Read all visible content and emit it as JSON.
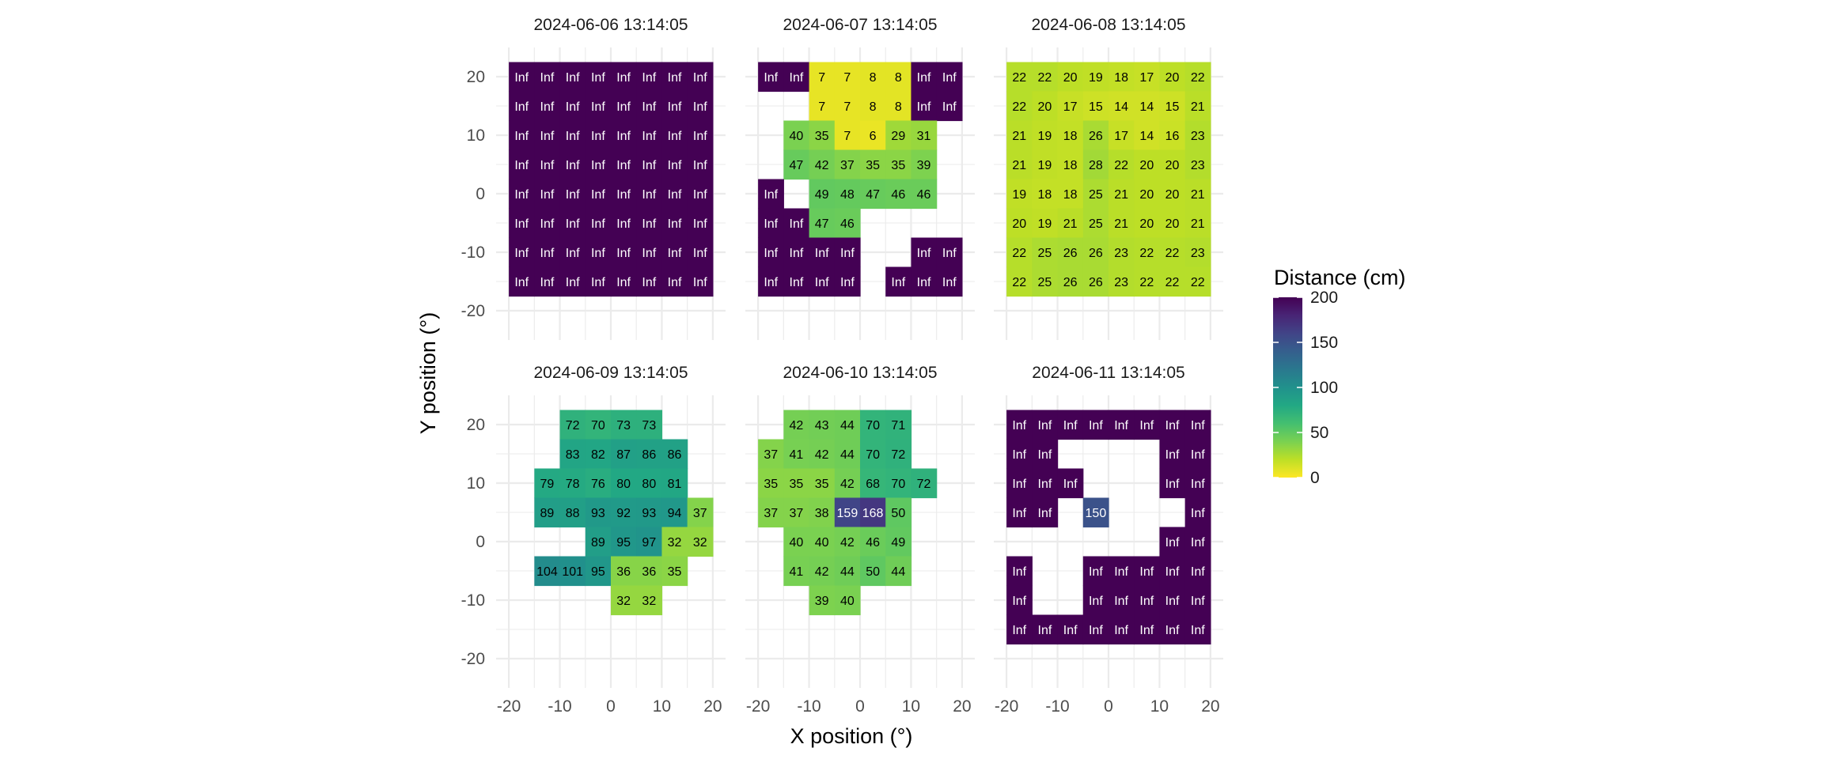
{
  "chart_data": {
    "type": "heatmap",
    "xlabel": "X position (°)",
    "ylabel": "Y position (°)",
    "x_ticks": [
      -20,
      -10,
      0,
      10,
      20
    ],
    "y_ticks": [
      20,
      10,
      0,
      -10,
      -20
    ],
    "xlim": [
      -22.5,
      22.5
    ],
    "ylim": [
      -25,
      25
    ],
    "x_centers": [
      -17.5,
      -12.5,
      -7.5,
      -2.5,
      2.5,
      7.5,
      12.5,
      17.5
    ],
    "y_centers": [
      20,
      15,
      10,
      5,
      0,
      -5,
      -10,
      -15
    ],
    "inf_display_value": 200,
    "legend": {
      "title": "Distance (cm)",
      "ticks": [
        200,
        150,
        100,
        50,
        0
      ],
      "range": [
        0,
        200
      ],
      "placement": "right",
      "colormap": "viridis (reversed: 0 = yellow, 200 = dark purple)"
    },
    "colors": {
      "grid": "#ebebeb",
      "text_dark": "#000000",
      "text_light": "#ffffff",
      "tick_label": "#4d4d4d"
    },
    "panels": [
      {
        "title": "2024-06-06 13:14:05",
        "rows": [
          [
            "Inf",
            "Inf",
            "Inf",
            "Inf",
            "Inf",
            "Inf",
            "Inf",
            "Inf"
          ],
          [
            "Inf",
            "Inf",
            "Inf",
            "Inf",
            "Inf",
            "Inf",
            "Inf",
            "Inf"
          ],
          [
            "Inf",
            "Inf",
            "Inf",
            "Inf",
            "Inf",
            "Inf",
            "Inf",
            "Inf"
          ],
          [
            "Inf",
            "Inf",
            "Inf",
            "Inf",
            "Inf",
            "Inf",
            "Inf",
            "Inf"
          ],
          [
            "Inf",
            "Inf",
            "Inf",
            "Inf",
            "Inf",
            "Inf",
            "Inf",
            "Inf"
          ],
          [
            "Inf",
            "Inf",
            "Inf",
            "Inf",
            "Inf",
            "Inf",
            "Inf",
            "Inf"
          ],
          [
            "Inf",
            "Inf",
            "Inf",
            "Inf",
            "Inf",
            "Inf",
            "Inf",
            "Inf"
          ],
          [
            "Inf",
            "Inf",
            "Inf",
            "Inf",
            "Inf",
            "Inf",
            "Inf",
            "Inf"
          ]
        ]
      },
      {
        "title": "2024-06-07 13:14:05",
        "rows": [
          [
            "Inf",
            "Inf",
            "7",
            "7",
            "8",
            "8",
            "Inf",
            "Inf"
          ],
          [
            null,
            null,
            "7",
            "7",
            "8",
            "8",
            "Inf",
            "Inf"
          ],
          [
            null,
            "40",
            "35",
            "7",
            "6",
            "29",
            "31",
            null
          ],
          [
            null,
            "47",
            "42",
            "37",
            "35",
            "35",
            "39",
            null
          ],
          [
            "Inf",
            null,
            "49",
            "48",
            "47",
            "46",
            "46",
            null
          ],
          [
            "Inf",
            "Inf",
            "47",
            "46",
            null,
            null,
            null,
            null
          ],
          [
            "Inf",
            "Inf",
            "Inf",
            "Inf",
            null,
            null,
            "Inf",
            "Inf"
          ],
          [
            "Inf",
            "Inf",
            "Inf",
            "Inf",
            null,
            "Inf",
            "Inf",
            "Inf"
          ]
        ]
      },
      {
        "title": "2024-06-08 13:14:05",
        "rows": [
          [
            "22",
            "22",
            "20",
            "19",
            "18",
            "17",
            "20",
            "22"
          ],
          [
            "22",
            "20",
            "17",
            "15",
            "14",
            "14",
            "15",
            "21"
          ],
          [
            "21",
            "19",
            "18",
            "26",
            "17",
            "14",
            "16",
            "23"
          ],
          [
            "21",
            "19",
            "18",
            "28",
            "22",
            "20",
            "20",
            "23"
          ],
          [
            "19",
            "18",
            "18",
            "25",
            "21",
            "20",
            "20",
            "21"
          ],
          [
            "20",
            "19",
            "21",
            "25",
            "21",
            "20",
            "20",
            "21"
          ],
          [
            "22",
            "25",
            "26",
            "26",
            "23",
            "22",
            "22",
            "23"
          ],
          [
            "22",
            "25",
            "26",
            "26",
            "23",
            "22",
            "22",
            "22"
          ]
        ]
      },
      {
        "title": "2024-06-09 13:14:05",
        "rows": [
          [
            null,
            null,
            "72",
            "70",
            "73",
            "73",
            null,
            null
          ],
          [
            null,
            null,
            "83",
            "82",
            "87",
            "86",
            "86",
            null
          ],
          [
            null,
            "79",
            "78",
            "76",
            "80",
            "80",
            "81",
            null
          ],
          [
            null,
            "89",
            "88",
            "93",
            "92",
            "93",
            "94",
            "37"
          ],
          [
            null,
            null,
            null,
            "89",
            "95",
            "97",
            "32",
            "32"
          ],
          [
            null,
            "104",
            "101",
            "95",
            "36",
            "36",
            "35",
            null
          ],
          [
            null,
            null,
            null,
            null,
            "32",
            "32",
            null,
            null
          ],
          [
            null,
            null,
            null,
            null,
            null,
            null,
            null,
            null
          ]
        ]
      },
      {
        "title": "2024-06-10 13:14:05",
        "rows": [
          [
            null,
            "42",
            "43",
            "44",
            "70",
            "71",
            null,
            null
          ],
          [
            "37",
            "41",
            "42",
            "44",
            "70",
            "72",
            null,
            null
          ],
          [
            "35",
            "35",
            "35",
            "42",
            "68",
            "70",
            "72",
            null
          ],
          [
            "37",
            "37",
            "38",
            "159",
            "168",
            "50",
            null,
            null
          ],
          [
            null,
            "40",
            "40",
            "42",
            "46",
            "49",
            null,
            null
          ],
          [
            null,
            "41",
            "42",
            "44",
            "50",
            "44",
            null,
            null
          ],
          [
            null,
            null,
            "39",
            "40",
            null,
            null,
            null,
            null
          ],
          [
            null,
            null,
            null,
            null,
            null,
            null,
            null,
            null
          ]
        ]
      },
      {
        "title": "2024-06-11 13:14:05",
        "rows": [
          [
            "Inf",
            "Inf",
            "Inf",
            "Inf",
            "Inf",
            "Inf",
            "Inf",
            "Inf"
          ],
          [
            "Inf",
            "Inf",
            null,
            null,
            null,
            null,
            "Inf",
            "Inf"
          ],
          [
            "Inf",
            "Inf",
            "Inf",
            null,
            null,
            null,
            "Inf",
            "Inf"
          ],
          [
            "Inf",
            "Inf",
            null,
            "150",
            null,
            null,
            null,
            "Inf"
          ],
          [
            null,
            null,
            null,
            null,
            null,
            null,
            "Inf",
            "Inf"
          ],
          [
            "Inf",
            null,
            null,
            "Inf",
            "Inf",
            "Inf",
            "Inf",
            "Inf"
          ],
          [
            "Inf",
            null,
            null,
            "Inf",
            "Inf",
            "Inf",
            "Inf",
            "Inf"
          ],
          [
            "Inf",
            "Inf",
            "Inf",
            "Inf",
            "Inf",
            "Inf",
            "Inf",
            "Inf"
          ]
        ]
      }
    ]
  }
}
